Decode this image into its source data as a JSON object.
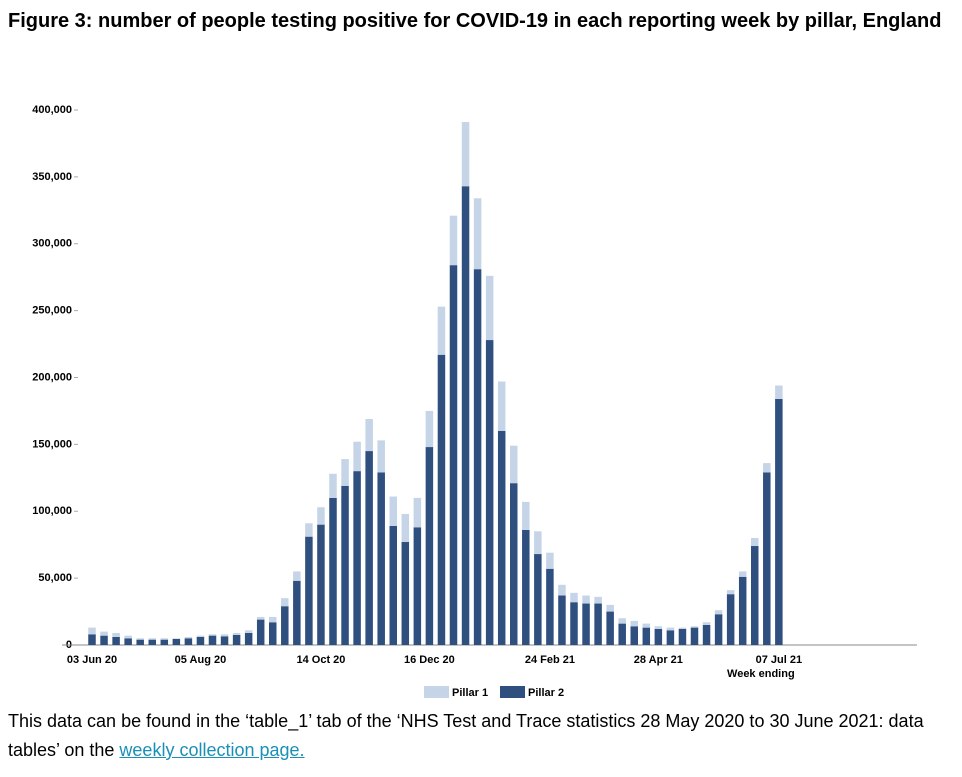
{
  "chart_data": {
    "type": "bar",
    "stacked": true,
    "title": "Figure 3: number of people testing positive for COVID-19 in each reporting week by pillar, England",
    "x_label": "Week ending",
    "categories": [
      "03 Jun 20",
      null,
      null,
      null,
      null,
      null,
      null,
      null,
      null,
      "05 Aug 20",
      null,
      null,
      null,
      null,
      null,
      null,
      null,
      null,
      null,
      "14 Oct 20",
      null,
      null,
      null,
      null,
      null,
      null,
      null,
      null,
      "16 Dec 20",
      null,
      null,
      null,
      null,
      null,
      null,
      null,
      null,
      null,
      "24 Feb 21",
      null,
      null,
      null,
      null,
      null,
      null,
      null,
      null,
      "28 Apr 21",
      null,
      null,
      null,
      null,
      null,
      null,
      null,
      null,
      null,
      "07 Jul 21"
    ],
    "series": [
      {
        "name": "Pillar 1",
        "color": "#c6d4e8",
        "values": [
          5000,
          3000,
          3000,
          2000,
          1000,
          1000,
          1000,
          500,
          1000,
          1000,
          1000,
          1500,
          1500,
          2000,
          2000,
          4000,
          6000,
          7000,
          10000,
          13000,
          18000,
          20000,
          22000,
          24000,
          24000,
          22000,
          21000,
          22000,
          27000,
          36000,
          37000,
          48000,
          53000,
          48000,
          37000,
          28000,
          21000,
          17000,
          12000,
          8000,
          7000,
          6000,
          5000,
          5000,
          4000,
          4000,
          3000,
          2000,
          2000,
          1000,
          1000,
          2000,
          3000,
          3000,
          4000,
          6000,
          7000,
          10000
        ]
      },
      {
        "name": "Pillar 2",
        "color": "#2f4f7f",
        "values": [
          8000,
          7000,
          6000,
          5000,
          4000,
          4000,
          4000,
          4500,
          5000,
          6000,
          7000,
          6500,
          7500,
          9000,
          19000,
          17000,
          29000,
          48000,
          81000,
          90000,
          110000,
          119000,
          130000,
          145000,
          129000,
          89000,
          77000,
          88000,
          148000,
          217000,
          284000,
          343000,
          281000,
          228000,
          160000,
          121000,
          86000,
          68000,
          57000,
          37000,
          32000,
          31000,
          31000,
          25000,
          16000,
          14000,
          13000,
          12000,
          11000,
          12000,
          13000,
          15000,
          23000,
          38000,
          51000,
          74000,
          129000,
          184000
        ]
      }
    ],
    "ylim": [
      0,
      400000
    ],
    "yticks": [
      0,
      {
        "value": 50000,
        "label": "50,000"
      },
      {
        "value": 100000,
        "label": "100,000"
      },
      {
        "value": 150000,
        "label": "150,000"
      },
      {
        "value": 200000,
        "label": "200,000"
      },
      {
        "value": 250000,
        "label": "250,000"
      },
      {
        "value": 300000,
        "label": "300,000"
      },
      {
        "value": 350000,
        "label": "350,000"
      },
      {
        "value": 400000,
        "label": "400,000"
      }
    ],
    "legend": "bottom"
  },
  "footnote": {
    "text": "This data can be found in the ‘table_1’ tab of the ‘NHS Test and Trace statistics 28 May 2020 to 30 June 2021: data tables’ on the ",
    "link": "weekly collection page."
  }
}
